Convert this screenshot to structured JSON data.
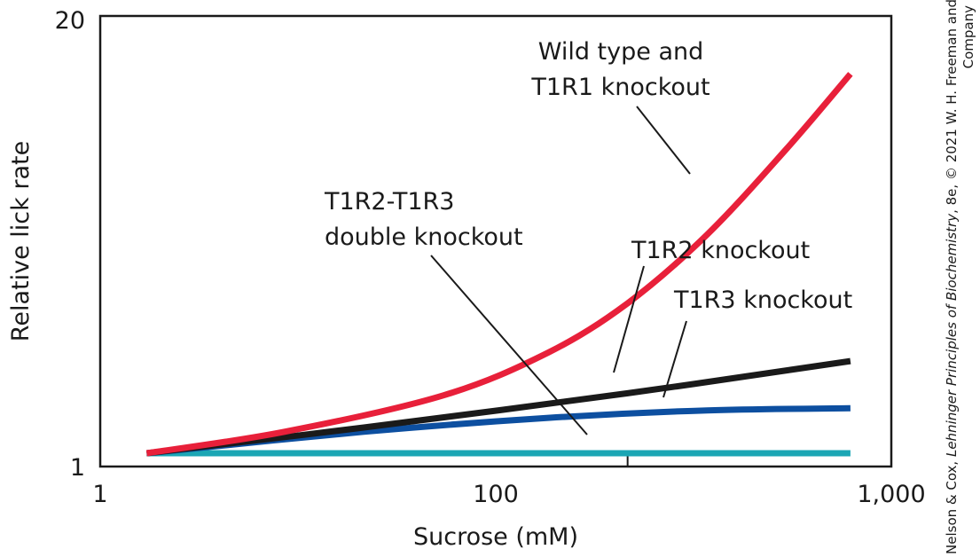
{
  "chart_data": {
    "type": "line",
    "xlabel": "Sucrose (mM)",
    "ylabel": "Relative lick rate",
    "x_scale": "log",
    "xlim": [
      1,
      1000
    ],
    "ylim": [
      1,
      20
    ],
    "x_ticks": [
      {
        "value": 1,
        "label": "1"
      },
      {
        "value": 100,
        "label": "100"
      },
      {
        "value": 1000,
        "label": "1,000"
      }
    ],
    "y_ticks": [
      {
        "value": 1,
        "label": "1"
      },
      {
        "value": 20,
        "label": "20"
      }
    ],
    "grid": false,
    "legend": "none (direct labels with leader lines)",
    "series": [
      {
        "name": "Wild type and T1R1 knockout",
        "color": "#e8203a",
        "x": [
          1.5,
          5,
          20,
          50,
          100,
          200,
          400,
          700
        ],
        "y": [
          1.0,
          2.0,
          3.7,
          5.7,
          8.0,
          11.2,
          15.2,
          18.7
        ]
      },
      {
        "name": "T1R2 knockout",
        "color": "#1a1a1a",
        "x": [
          1.5,
          10,
          100,
          700
        ],
        "y": [
          1.0,
          2.2,
          3.8,
          5.3
        ]
      },
      {
        "name": "T1R3 knockout",
        "color": "#0d4fa0",
        "x": [
          1.5,
          10,
          50,
          200,
          700
        ],
        "y": [
          1.0,
          2.0,
          2.65,
          3.0,
          3.1
        ]
      },
      {
        "name": "T1R2-T1R3 double knockout",
        "color": "#1ba6b4",
        "x": [
          1.5,
          700
        ],
        "y": [
          1.0,
          1.0
        ]
      }
    ],
    "annotations": [
      {
        "series": 0,
        "lines": [
          "Wild type and",
          "T1R1 knockout"
        ]
      },
      {
        "series": 1,
        "lines": [
          "T1R2 knockout"
        ]
      },
      {
        "series": 2,
        "lines": [
          "T1R3 knockout"
        ]
      },
      {
        "series": 3,
        "lines": [
          "T1R2-T1R3",
          "double knockout"
        ]
      }
    ]
  },
  "credit": {
    "part1": "Nelson & Cox, ",
    "part2": "Lehninger Principles of Biochemistry",
    "part3": ", 8e, © 2021 W. H. Freeman and",
    "line2": "Company"
  }
}
